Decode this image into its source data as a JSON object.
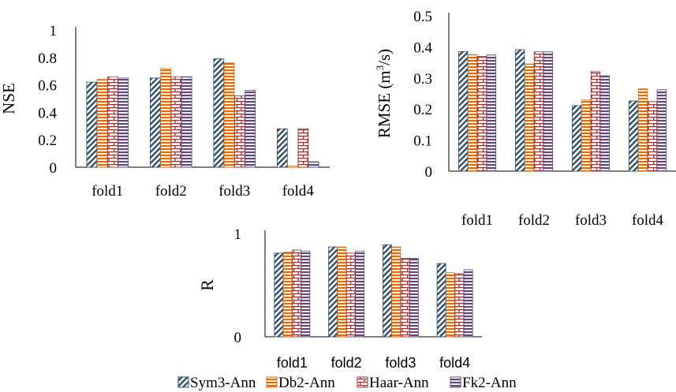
{
  "legend": {
    "placement": "bottom",
    "entries": [
      {
        "name": "Sym3-Ann",
        "pattern": "diagonal",
        "color": "#2f4f6f"
      },
      {
        "name": "Db2-Ann",
        "pattern": "horizontal",
        "color": "#e36c09"
      },
      {
        "name": "Haar-Ann",
        "pattern": "brick",
        "color": "#953735"
      },
      {
        "name": "Fk2-Ann",
        "pattern": "horizontal",
        "color": "#60497a"
      }
    ]
  },
  "chart_data": [
    {
      "type": "bar",
      "ylabel": "NSE",
      "ylim": [
        0,
        1
      ],
      "yticks": [
        "0",
        "0.2",
        "0.4",
        "0.6",
        "0.8",
        "1"
      ],
      "grid": false,
      "categories": [
        "fold1",
        "fold2",
        "fold3",
        "fold4"
      ],
      "series": [
        {
          "name": "Sym3-Ann",
          "values": [
            0.62,
            0.65,
            0.79,
            0.28
          ]
        },
        {
          "name": "Db2-Ann",
          "values": [
            0.64,
            0.72,
            0.76,
            0.01
          ]
        },
        {
          "name": "Haar-Ann",
          "values": [
            0.66,
            0.66,
            0.52,
            0.28
          ]
        },
        {
          "name": "Fk2-Ann",
          "values": [
            0.65,
            0.66,
            0.56,
            0.04
          ]
        }
      ]
    },
    {
      "type": "bar",
      "ylabel": "RMSE (m³/s)",
      "ylim": [
        0,
        0.5
      ],
      "yticks": [
        "0",
        "0.1",
        "0.2",
        "0.3",
        "0.4",
        "0.5"
      ],
      "grid": false,
      "categories": [
        "fold1",
        "fold2",
        "fold3",
        "fold4"
      ],
      "series": [
        {
          "name": "Sym3-Ann",
          "values": [
            0.385,
            0.391,
            0.211,
            0.226
          ]
        },
        {
          "name": "Db2-Ann",
          "values": [
            0.375,
            0.345,
            0.229,
            0.265
          ]
        },
        {
          "name": "Haar-Ann",
          "values": [
            0.369,
            0.384,
            0.32,
            0.224
          ]
        },
        {
          "name": "Fk2-Ann",
          "values": [
            0.374,
            0.384,
            0.307,
            0.262
          ]
        }
      ]
    },
    {
      "type": "bar",
      "ylabel": "R",
      "ylim": [
        0,
        1
      ],
      "yticks": [
        "0",
        "1"
      ],
      "grid": false,
      "categories": [
        "fold1",
        "fold2",
        "fold3",
        "fold4"
      ],
      "series": [
        {
          "name": "Sym3-Ann",
          "values": [
            0.81,
            0.87,
            0.89,
            0.71
          ]
        },
        {
          "name": "Db2-Ann",
          "values": [
            0.82,
            0.87,
            0.87,
            0.62
          ]
        },
        {
          "name": "Haar-Ann",
          "values": [
            0.84,
            0.81,
            0.76,
            0.61
          ]
        },
        {
          "name": "Fk2-Ann",
          "values": [
            0.83,
            0.83,
            0.76,
            0.65
          ]
        }
      ]
    }
  ]
}
